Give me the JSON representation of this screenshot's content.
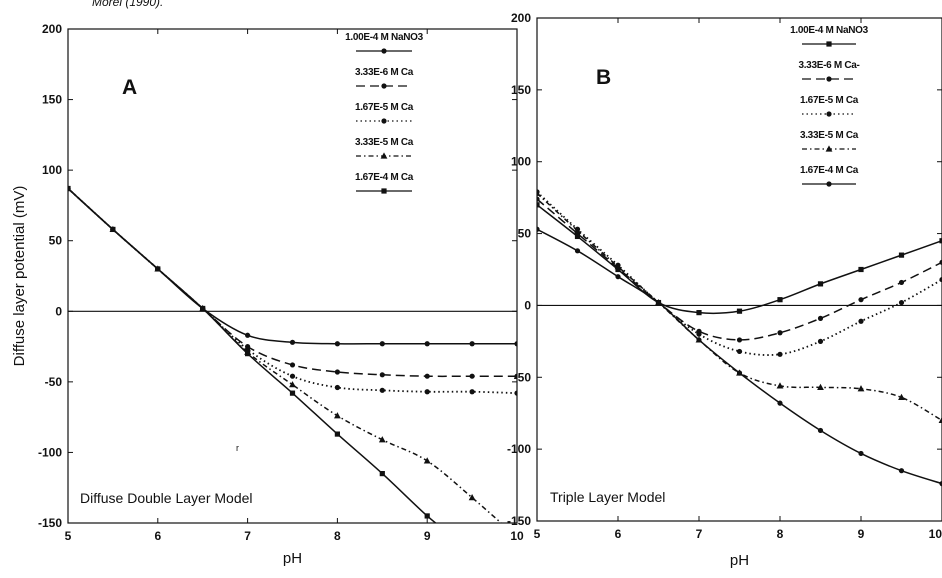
{
  "caption": "Morel (1990).",
  "colors": {
    "ink": "#111111",
    "background": "#ffffff"
  },
  "chart_data": [
    {
      "type": "line",
      "panel": "A",
      "model_label": "Diffuse Double Layer Model",
      "xlabel": "pH",
      "ylabel": "Diffuse layer potential (mV)",
      "xlim": [
        5,
        10
      ],
      "ylim": [
        -150,
        200
      ],
      "xticks": [
        "5",
        "6",
        "7",
        "8",
        "9",
        "10"
      ],
      "yticks": [
        "200",
        "150",
        "100",
        "50",
        "0",
        "-50",
        "-100",
        "-150"
      ],
      "stray_mark": "r",
      "legend_position": "top-right",
      "series": [
        {
          "name": "1.00E-4 M NaNO3",
          "style": "solid",
          "marker": "circle",
          "x": [
            5,
            5.5,
            6,
            6.5,
            7,
            7.5,
            8,
            8.5,
            9,
            9.5,
            10
          ],
          "y": [
            87,
            58,
            30,
            2,
            -17,
            -22,
            -23,
            -23,
            -23,
            -23,
            -23
          ]
        },
        {
          "name": "3.33E-6 M Ca",
          "style": "dashed",
          "marker": "circle",
          "x": [
            5,
            5.5,
            6,
            6.5,
            7,
            7.5,
            8,
            8.5,
            9,
            9.5,
            10
          ],
          "y": [
            87,
            58,
            30,
            2,
            -25,
            -38,
            -43,
            -45,
            -46,
            -46,
            -46
          ]
        },
        {
          "name": "1.67E-5 M Ca",
          "style": "dotted",
          "marker": "circle",
          "x": [
            5,
            5.5,
            6,
            6.5,
            7,
            7.5,
            8,
            8.5,
            9,
            9.5,
            10
          ],
          "y": [
            87,
            58,
            30,
            2,
            -27,
            -46,
            -54,
            -56,
            -57,
            -57,
            -58
          ]
        },
        {
          "name": "3.33E-5 M Ca",
          "style": "dashdot",
          "marker": "triangle",
          "x": [
            5,
            5.5,
            6,
            6.5,
            7,
            7.5,
            8,
            8.5,
            9,
            9.5,
            10
          ],
          "y": [
            87,
            58,
            30,
            2,
            -29,
            -52,
            -74,
            -91,
            -106,
            -132,
            -160
          ]
        },
        {
          "name": "1.67E-4 M Ca",
          "style": "solid",
          "marker": "square",
          "x": [
            5,
            5.5,
            6,
            6.5,
            7,
            7.5,
            8,
            8.5,
            9,
            9.3
          ],
          "y": [
            87,
            58,
            30,
            2,
            -30,
            -58,
            -87,
            -115,
            -145,
            -160
          ]
        }
      ]
    },
    {
      "type": "line",
      "panel": "B",
      "model_label": "Triple Layer Model",
      "xlabel": "pH",
      "ylabel": "",
      "xlim": [
        5,
        10
      ],
      "ylim": [
        -150,
        200
      ],
      "xticks": [
        "5",
        "6",
        "7",
        "8",
        "9",
        "10"
      ],
      "yticks": [
        "200",
        "150",
        "100",
        "50",
        "0",
        "-50",
        "-100",
        "-150"
      ],
      "legend_position": "top-right",
      "series": [
        {
          "name": "1.00E-4 M NaNO3",
          "style": "solid",
          "marker": "square",
          "x": [
            5,
            5.5,
            6,
            6.5,
            7,
            7.5,
            8,
            8.5,
            9,
            9.5,
            10
          ],
          "y": [
            70,
            48,
            25,
            2,
            -5,
            -4,
            4,
            15,
            25,
            35,
            45
          ]
        },
        {
          "name": "3.33E-6 M Ca-",
          "style": "dashed",
          "marker": "circle",
          "x": [
            5,
            5.5,
            6,
            6.5,
            7,
            7.5,
            8,
            8.5,
            9,
            9.5,
            10
          ],
          "y": [
            74,
            50,
            26,
            2,
            -18,
            -24,
            -19,
            -9,
            4,
            16,
            30
          ]
        },
        {
          "name": "1.67E-5 M Ca",
          "style": "dotted",
          "marker": "circle",
          "x": [
            5,
            5.5,
            6,
            6.5,
            7,
            7.5,
            8,
            8.5,
            9,
            9.5,
            10
          ],
          "y": [
            79,
            53,
            28,
            2,
            -20,
            -32,
            -34,
            -25,
            -11,
            2,
            18
          ]
        },
        {
          "name": "3.33E-5 M Ca",
          "style": "dashdot",
          "marker": "triangle",
          "x": [
            5,
            5.5,
            6,
            6.5,
            7,
            7.5,
            8,
            8.5,
            9,
            9.5,
            10
          ],
          "y": [
            78,
            52,
            27,
            2,
            -24,
            -47,
            -56,
            -57,
            -58,
            -64,
            -80
          ]
        },
        {
          "name": "1.67E-4 M Ca",
          "style": "solid",
          "marker": "circle",
          "x": [
            5,
            5.5,
            6,
            6.5,
            7,
            7.5,
            8,
            8.5,
            9,
            9.5,
            10
          ],
          "y": [
            53,
            38,
            20,
            2,
            -24,
            -47,
            -68,
            -87,
            -103,
            -115,
            -124
          ]
        }
      ]
    }
  ]
}
